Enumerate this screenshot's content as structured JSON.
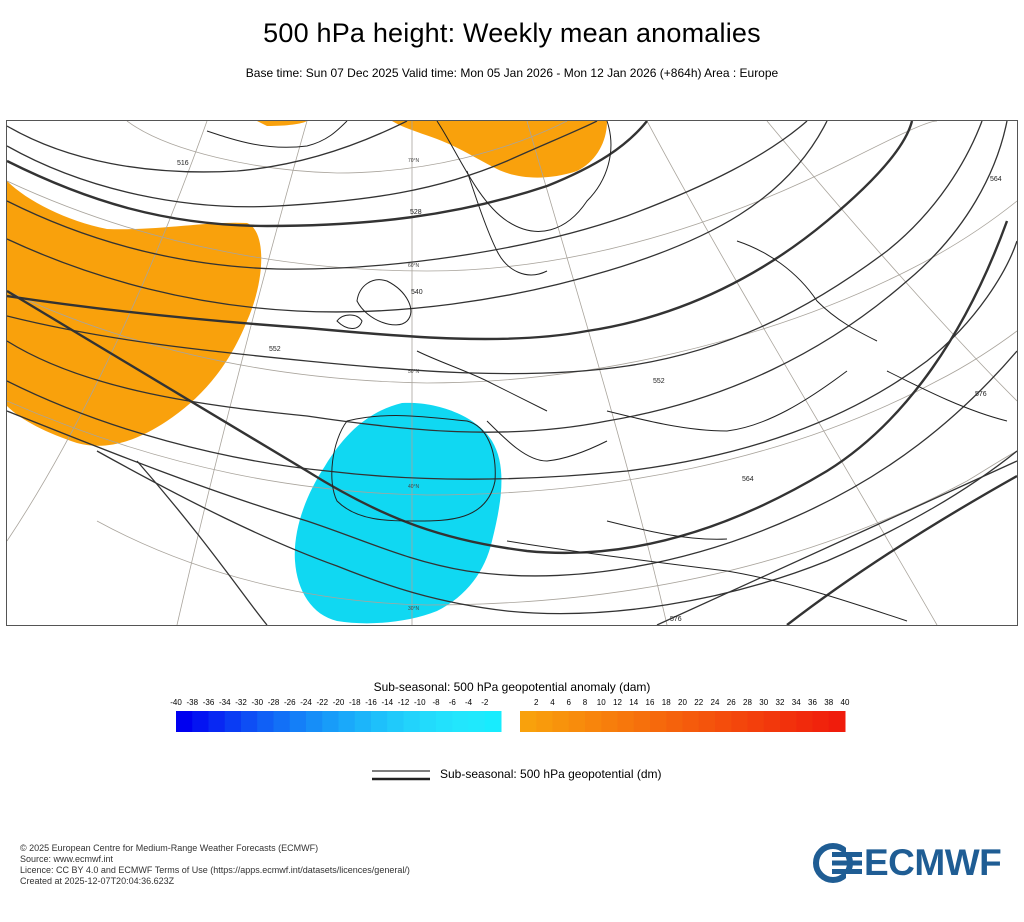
{
  "header": {
    "title": "500 hPa height: Weekly mean anomalies",
    "subtitle": "Base time: Sun 07 Dec 2025 Valid time: Mon 05 Jan 2026 - Mon 12 Jan 2026 (+864h) Area : Europe"
  },
  "map": {
    "contour_labels": [
      "516",
      "528",
      "540",
      "552",
      "552",
      "564",
      "564",
      "576",
      "576"
    ],
    "lat_labels": [
      "70°N",
      "60°N",
      "50°N",
      "40°N",
      "30°N"
    ],
    "anomalies": [
      {
        "name": "positive anomaly north-west Atlantic",
        "sign": "positive",
        "color": "#f9a10c"
      },
      {
        "name": "positive anomaly Scandinavia",
        "sign": "positive",
        "color": "#f9a10c"
      },
      {
        "name": "negative anomaly Iberia",
        "sign": "negative",
        "color": "#10d8f2"
      }
    ]
  },
  "colorbar": {
    "title": "Sub-seasonal: 500 hPa geopotential anomaly (dam)",
    "negative_ticks": [
      "-40",
      "-38",
      "-36",
      "-34",
      "-32",
      "-30",
      "-28",
      "-26",
      "-24",
      "-22",
      "-20",
      "-18",
      "-16",
      "-14",
      "-12",
      "-10",
      "-8",
      "-6",
      "-4",
      "-2"
    ],
    "positive_ticks": [
      "2",
      "4",
      "6",
      "8",
      "10",
      "12",
      "14",
      "16",
      "18",
      "20",
      "22",
      "24",
      "26",
      "28",
      "30",
      "32",
      "34",
      "36",
      "38",
      "40"
    ],
    "negative_colors": [
      "#0000f0",
      "#0414f2",
      "#0828f3",
      "#0a3cf4",
      "#0e4ef5",
      "#1060f6",
      "#1270f7",
      "#147ff8",
      "#168ef8",
      "#189cf9",
      "#1aa9fa",
      "#1cb5fa",
      "#1ec0fb",
      "#20cafb",
      "#22d3fc",
      "#22dbfc",
      "#22e1fd",
      "#22e6fd",
      "#1fe9fd",
      "#18ecfe"
    ],
    "positive_colors": [
      "#f9a10c",
      "#f99a0c",
      "#f8930c",
      "#f88c0c",
      "#f8850c",
      "#f77e0c",
      "#f7770c",
      "#f6700c",
      "#f6690c",
      "#f5620c",
      "#f55b0c",
      "#f4540c",
      "#f44d0c",
      "#f3460c",
      "#f33f0c",
      "#f2380c",
      "#f2310c",
      "#f12a0c",
      "#f1230c",
      "#f01c0c"
    ]
  },
  "legend": {
    "line_label": "Sub-seasonal: 500 hPa geopotential (dm)"
  },
  "footer": {
    "lines": [
      "© 2025 European Centre for Medium-Range Weather Forecasts (ECMWF)",
      "Source: www.ecmwf.int",
      "Licence: CC BY 4.0 and ECMWF Terms of Use (https://apps.ecmwf.int/datasets/licences/general/)",
      "Created at 2025-12-07T20:04:36.623Z"
    ]
  },
  "logo": {
    "text": "ECMWF",
    "color": "#1f5d94"
  }
}
